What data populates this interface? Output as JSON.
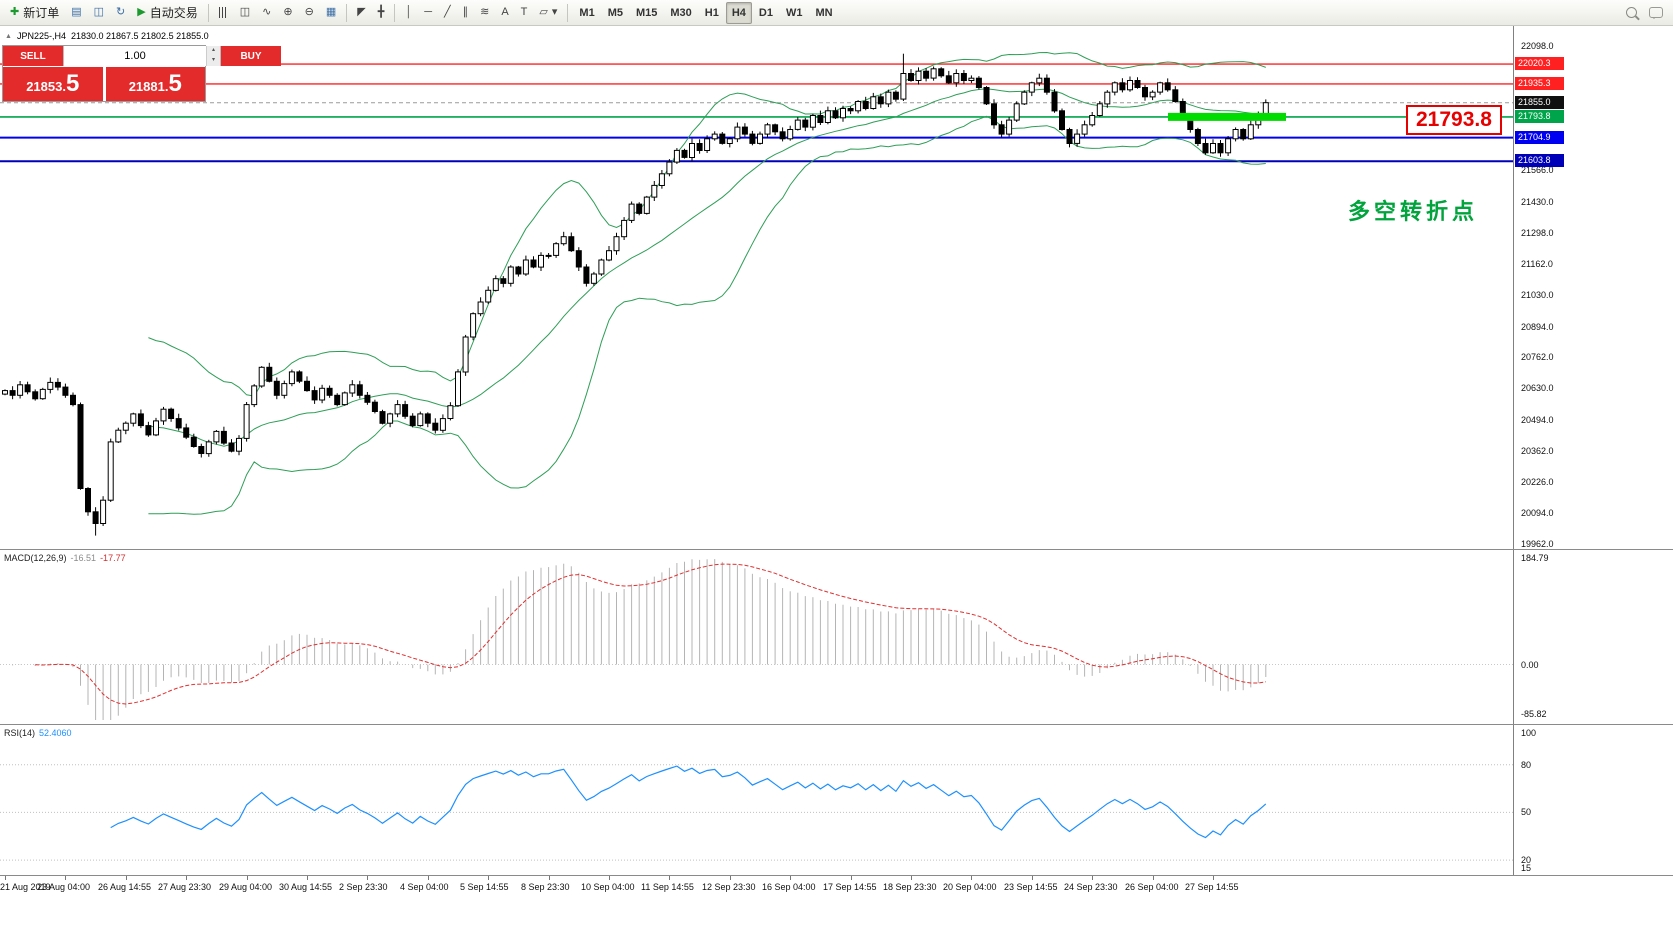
{
  "toolbar": {
    "new_order": "新订单",
    "autotrade": "自动交易",
    "timeframes": [
      "M1",
      "M5",
      "M15",
      "M30",
      "H1",
      "H4",
      "D1",
      "W1",
      "MN"
    ],
    "active_timeframe": "H4"
  },
  "icons": {
    "new_order": "✚",
    "charts": "▤",
    "profiles": "◫",
    "refresh": "↻",
    "autotrade": "▶",
    "bars": "☰",
    "candles": "◫",
    "linechart": "∿",
    "zoom_in": "⊕",
    "zoom_out": "⊖",
    "tile": "▦",
    "cursor": "◤",
    "crosshair": "╋",
    "vline": "│",
    "hline": "─",
    "trendline": "╱",
    "channel": "∥",
    "fibo": "≋",
    "text": "A",
    "label": "T",
    "shapes": "▱",
    "caret": "▾",
    "sym_arrow": "▲",
    "spin_up": "▴",
    "spin_down": "▾"
  },
  "symbol_info": {
    "name": "JPN225-,H4",
    "ohlc": "21830.0 21867.5 21802.5 21855.0"
  },
  "one_click": {
    "sell_label": "SELL",
    "buy_label": "BUY",
    "volume": "1.00",
    "sell_price": "21853.5",
    "buy_price": "21881.5"
  },
  "annotations": {
    "callout_price": "21793.8",
    "cn_text": "多空转折点"
  },
  "indicators": {
    "macd_name": "MACD(12,26,9)",
    "macd_main": "-16.51",
    "macd_signal": "-17.77",
    "rsi_name": "RSI(14)",
    "rsi_value": "52.4060"
  },
  "levels": [
    {
      "name": "resistance-upper",
      "label": "22020.3",
      "price": 22020.3,
      "color": "#ff2121",
      "tag_bg": "#ff2121",
      "style": "solid",
      "width": 1.4
    },
    {
      "name": "resistance-lower",
      "label": "21935.3",
      "price": 21935.3,
      "color": "#ff2121",
      "tag_bg": "#ff2121",
      "style": "solid",
      "width": 1.4
    },
    {
      "name": "current-price",
      "label": "21855.0",
      "price": 21855.0,
      "color": "#9a9a9a",
      "tag_bg": "#101010",
      "style": "dash",
      "width": 1
    },
    {
      "name": "pivot-green",
      "label": "21793.8",
      "price": 21793.8,
      "color": "#00a44a",
      "tag_bg": "#00a44a",
      "style": "solid",
      "width": 1.6
    },
    {
      "name": "support-upper",
      "label": "21704.9",
      "price": 21704.9,
      "color": "#0000f0",
      "tag_bg": "#0000f0",
      "style": "solid",
      "width": 2
    },
    {
      "name": "support-lower",
      "label": "21603.8",
      "price": 21603.8,
      "color": "#0000b8",
      "tag_bg": "#0000b8",
      "style": "solid",
      "width": 2
    }
  ],
  "axis": {
    "main_ticks": [
      {
        "label": "22098.0",
        "price": 22098.0
      },
      {
        "label": "21566.0",
        "price": 21566.0
      },
      {
        "label": "21430.0",
        "price": 21430.0
      },
      {
        "label": "21298.0",
        "price": 21298.0
      },
      {
        "label": "21162.0",
        "price": 21162.0
      },
      {
        "label": "21030.0",
        "price": 21030.0
      },
      {
        "label": "20894.0",
        "price": 20894.0
      },
      {
        "label": "20762.0",
        "price": 20762.0
      },
      {
        "label": "20630.0",
        "price": 20630.0
      },
      {
        "label": "20494.0",
        "price": 20494.0
      },
      {
        "label": "20362.0",
        "price": 20362.0
      },
      {
        "label": "20226.0",
        "price": 20226.0
      },
      {
        "label": "20094.0",
        "price": 20094.0
      },
      {
        "label": "19962.0",
        "price": 19962.0
      }
    ],
    "macd_ticks": [
      {
        "label": "184.79",
        "value": 184.79
      },
      {
        "label": "0.00",
        "value": 0
      },
      {
        "label": "-85.82",
        "value": -85.82
      }
    ],
    "rsi_ticks": [
      {
        "label": "100",
        "value": 100
      },
      {
        "label": "80",
        "value": 80
      },
      {
        "label": "50",
        "value": 50
      },
      {
        "label": "20",
        "value": 20
      },
      {
        "label": "15",
        "value": 15
      }
    ]
  },
  "time_axis": [
    "21 Aug 2019",
    "23 Aug 04:00",
    "26 Aug 14:55",
    "27 Aug 23:30",
    "29 Aug 04:00",
    "30 Aug 14:55",
    "2 Sep 23:30",
    "4 Sep 04:00",
    "5 Sep 14:55",
    "8 Sep 23:30",
    "10 Sep 04:00",
    "11 Sep 14:55",
    "12 Sep 23:30",
    "16 Sep 04:00",
    "17 Sep 14:55",
    "18 Sep 23:30",
    "20 Sep 04:00",
    "23 Sep 14:55",
    "24 Sep 23:30",
    "26 Sep 04:00",
    "27 Sep 14:55"
  ],
  "chart_data": {
    "type": "candlestick",
    "symbol": "JPN225-",
    "timeframe": "H4",
    "title": "JPN225-,H4 21830.0 21867.5 21802.5 21855.0",
    "price_axis": {
      "min": 19962.0,
      "max": 22098.0
    },
    "closes": [
      20620,
      20600,
      20645,
      20615,
      20585,
      20625,
      20655,
      20635,
      20600,
      20560,
      20200,
      20100,
      20050,
      20150,
      20400,
      20450,
      20480,
      20520,
      20470,
      20430,
      20490,
      20540,
      20500,
      20460,
      20420,
      20380,
      20350,
      20400,
      20445,
      20395,
      20360,
      20415,
      20560,
      20640,
      20720,
      20660,
      20600,
      20650,
      20700,
      20660,
      20620,
      20580,
      20630,
      20600,
      20560,
      20610,
      20645,
      20600,
      20570,
      20530,
      20480,
      20520,
      20560,
      20510,
      20470,
      20520,
      20480,
      20450,
      20500,
      20555,
      20700,
      20850,
      20950,
      21000,
      21050,
      21100,
      21080,
      21150,
      21120,
      21180,
      21150,
      21200,
      21200,
      21250,
      21280,
      21220,
      21150,
      21080,
      21120,
      21180,
      21220,
      21280,
      21350,
      21420,
      21380,
      21450,
      21500,
      21550,
      21600,
      21650,
      21620,
      21680,
      21650,
      21700,
      21720,
      21680,
      21700,
      21750,
      21720,
      21680,
      21720,
      21760,
      21730,
      21700,
      21740,
      21780,
      21750,
      21800,
      21770,
      21820,
      21790,
      21830,
      21820,
      21860,
      21830,
      21880,
      21850,
      21900,
      21870,
      21980,
      21950,
      21990,
      21960,
      22000,
      21970,
      21940,
      21980,
      21950,
      21960,
      21920,
      21850,
      21760,
      21720,
      21780,
      21850,
      21900,
      21940,
      21960,
      21900,
      21820,
      21740,
      21680,
      21720,
      21760,
      21800,
      21850,
      21900,
      21940,
      21910,
      21950,
      21920,
      21880,
      21900,
      21940,
      21910,
      21860,
      21800,
      21740,
      21680,
      21640,
      21680,
      21640,
      21700,
      21740,
      21700,
      21760,
      21800,
      21855
    ],
    "wick_overrides": {
      "12": {
        "low": 19998
      },
      "119": {
        "high": 22065
      }
    },
    "bollinger": {
      "period": 20,
      "deviation": 2,
      "color": "#2e9e57"
    },
    "macd": {
      "fast": 12,
      "slow": 26,
      "signal": 9,
      "histogram_color": "#b4b4b4",
      "signal_color": "#e03030"
    },
    "rsi": {
      "period": 14,
      "color": "#1e90ff",
      "levels": [
        80,
        50,
        20
      ]
    },
    "highlight": {
      "price": 21793.8,
      "color": "#00dc00"
    }
  }
}
